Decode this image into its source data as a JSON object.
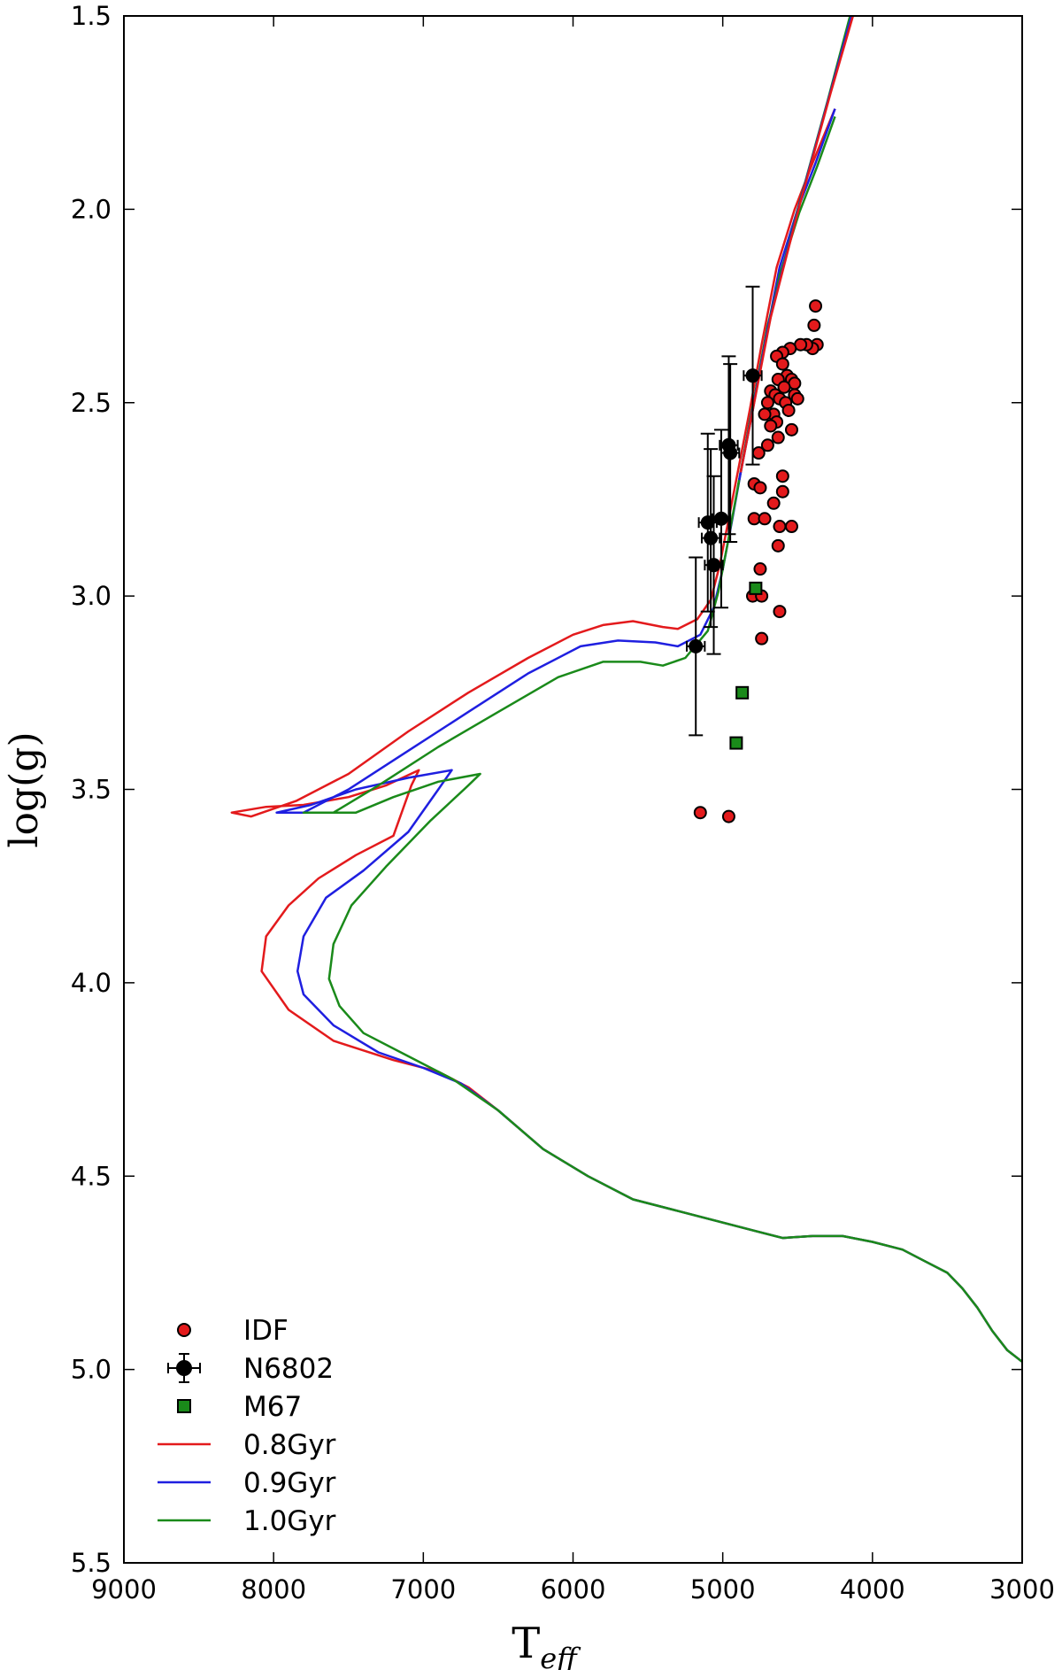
{
  "chart_data": {
    "type": "scatter",
    "title": "",
    "xlabel": "T",
    "xlabel_sub": "eff",
    "ylabel": "log(g)",
    "xlim": [
      9000,
      3000
    ],
    "ylim": [
      1.5,
      5.5
    ],
    "x_ticks": [
      9000,
      8000,
      7000,
      6000,
      5000,
      4000,
      3000
    ],
    "x_tick_labels": [
      "9000",
      "8000",
      "7000",
      "6000",
      "5000",
      "4000",
      "3000"
    ],
    "y_ticks": [
      1.5,
      2.0,
      2.5,
      3.0,
      3.5,
      4.0,
      4.5,
      5.0,
      5.5
    ],
    "y_tick_labels": [
      "1.5",
      "2.0",
      "2.5",
      "3.0",
      "3.5",
      "4.0",
      "4.5",
      "5.0",
      "5.5"
    ],
    "grid": false,
    "legend_position": "lower-left",
    "series": [
      {
        "name": "IDF",
        "kind": "scatter",
        "marker": "circle",
        "color": "#e31a1c",
        "points": [
          [
            4380,
            2.25
          ],
          [
            4390,
            2.3
          ],
          [
            4370,
            2.35
          ],
          [
            4400,
            2.36
          ],
          [
            4440,
            2.35
          ],
          [
            4480,
            2.35
          ],
          [
            4550,
            2.36
          ],
          [
            4600,
            2.37
          ],
          [
            4640,
            2.38
          ],
          [
            4600,
            2.4
          ],
          [
            4570,
            2.43
          ],
          [
            4540,
            2.44
          ],
          [
            4520,
            2.45
          ],
          [
            4630,
            2.44
          ],
          [
            4590,
            2.46
          ],
          [
            4680,
            2.47
          ],
          [
            4650,
            2.48
          ],
          [
            4520,
            2.48
          ],
          [
            4500,
            2.49
          ],
          [
            4620,
            2.49
          ],
          [
            4700,
            2.5
          ],
          [
            4580,
            2.5
          ],
          [
            4560,
            2.52
          ],
          [
            4660,
            2.53
          ],
          [
            4720,
            2.53
          ],
          [
            4640,
            2.55
          ],
          [
            4680,
            2.56
          ],
          [
            4540,
            2.57
          ],
          [
            4630,
            2.59
          ],
          [
            4700,
            2.61
          ],
          [
            4760,
            2.63
          ],
          [
            4600,
            2.69
          ],
          [
            4790,
            2.71
          ],
          [
            4750,
            2.72
          ],
          [
            4600,
            2.73
          ],
          [
            4660,
            2.76
          ],
          [
            4790,
            2.8
          ],
          [
            4720,
            2.8
          ],
          [
            4620,
            2.82
          ],
          [
            4540,
            2.82
          ],
          [
            4630,
            2.87
          ],
          [
            4750,
            2.93
          ],
          [
            4800,
            3.0
          ],
          [
            4740,
            3.0
          ],
          [
            4620,
            3.04
          ],
          [
            4740,
            3.11
          ],
          [
            5150,
            3.56
          ],
          [
            4960,
            3.57
          ]
        ]
      },
      {
        "name": "N6802",
        "kind": "errorbar",
        "marker": "circle",
        "color": "#000000",
        "points": [
          {
            "x": 4800,
            "y": 2.43,
            "xerr": 60,
            "yerr": 0.23
          },
          {
            "x": 4960,
            "y": 2.61,
            "xerr": 60,
            "yerr": 0.23
          },
          {
            "x": 4950,
            "y": 2.63,
            "xerr": 60,
            "yerr": 0.23
          },
          {
            "x": 5010,
            "y": 2.8,
            "xerr": 60,
            "yerr": 0.23
          },
          {
            "x": 5100,
            "y": 2.81,
            "xerr": 60,
            "yerr": 0.23
          },
          {
            "x": 5080,
            "y": 2.85,
            "xerr": 60,
            "yerr": 0.23
          },
          {
            "x": 5060,
            "y": 2.92,
            "xerr": 60,
            "yerr": 0.23
          },
          {
            "x": 5180,
            "y": 3.13,
            "xerr": 60,
            "yerr": 0.23
          }
        ]
      },
      {
        "name": "M67",
        "kind": "scatter",
        "marker": "square",
        "color": "#1a8a1a",
        "points": [
          [
            4780,
            2.98
          ],
          [
            4870,
            3.25
          ],
          [
            4910,
            3.38
          ]
        ]
      },
      {
        "name": "0.8Gyr",
        "kind": "line",
        "color": "#e31a1c",
        "points": [
          [
            3000,
            4.98
          ],
          [
            3100,
            4.95
          ],
          [
            3200,
            4.9
          ],
          [
            3300,
            4.84
          ],
          [
            3400,
            4.79
          ],
          [
            3500,
            4.75
          ],
          [
            3650,
            4.72
          ],
          [
            3800,
            4.69
          ],
          [
            4000,
            4.67
          ],
          [
            4200,
            4.655
          ],
          [
            4400,
            4.655
          ],
          [
            4600,
            4.66
          ],
          [
            4800,
            4.64
          ],
          [
            5000,
            4.62
          ],
          [
            5300,
            4.59
          ],
          [
            5600,
            4.56
          ],
          [
            5900,
            4.5
          ],
          [
            6200,
            4.43
          ],
          [
            6500,
            4.33
          ],
          [
            6700,
            4.27
          ],
          [
            6900,
            4.23
          ],
          [
            7200,
            4.2
          ],
          [
            7600,
            4.15
          ],
          [
            7900,
            4.07
          ],
          [
            8080,
            3.97
          ],
          [
            8050,
            3.88
          ],
          [
            7900,
            3.8
          ],
          [
            7700,
            3.73
          ],
          [
            7450,
            3.67
          ],
          [
            7200,
            3.62
          ],
          [
            7080,
            3.49
          ],
          [
            7030,
            3.45
          ],
          [
            7250,
            3.49
          ],
          [
            7500,
            3.52
          ],
          [
            7800,
            3.54
          ],
          [
            8050,
            3.545
          ],
          [
            8280,
            3.56
          ],
          [
            8150,
            3.57
          ],
          [
            7850,
            3.53
          ],
          [
            7500,
            3.46
          ],
          [
            7100,
            3.35
          ],
          [
            6700,
            3.25
          ],
          [
            6300,
            3.16
          ],
          [
            6000,
            3.1
          ],
          [
            5800,
            3.075
          ],
          [
            5600,
            3.065
          ],
          [
            5400,
            3.08
          ],
          [
            5300,
            3.085
          ],
          [
            5170,
            3.06
          ],
          [
            5080,
            3.01
          ],
          [
            5020,
            2.92
          ],
          [
            4960,
            2.8
          ],
          [
            4900,
            2.68
          ],
          [
            4820,
            2.52
          ],
          [
            4740,
            2.35
          ],
          [
            4640,
            2.15
          ],
          [
            4520,
            2.0
          ],
          [
            4400,
            1.88
          ],
          [
            4250,
            1.74
          ]
        ]
      },
      {
        "name": "0.9Gyr",
        "kind": "line",
        "color": "#1f1fe0",
        "points": [
          [
            3000,
            4.98
          ],
          [
            3100,
            4.95
          ],
          [
            3200,
            4.9
          ],
          [
            3300,
            4.84
          ],
          [
            3400,
            4.79
          ],
          [
            3500,
            4.75
          ],
          [
            3650,
            4.72
          ],
          [
            3800,
            4.69
          ],
          [
            4000,
            4.67
          ],
          [
            4200,
            4.655
          ],
          [
            4400,
            4.655
          ],
          [
            4600,
            4.66
          ],
          [
            4800,
            4.64
          ],
          [
            5000,
            4.62
          ],
          [
            5300,
            4.59
          ],
          [
            5600,
            4.56
          ],
          [
            5900,
            4.5
          ],
          [
            6200,
            4.43
          ],
          [
            6500,
            4.33
          ],
          [
            6750,
            4.26
          ],
          [
            7000,
            4.22
          ],
          [
            7300,
            4.18
          ],
          [
            7600,
            4.11
          ],
          [
            7800,
            4.03
          ],
          [
            7840,
            3.97
          ],
          [
            7800,
            3.88
          ],
          [
            7650,
            3.78
          ],
          [
            7400,
            3.71
          ],
          [
            7100,
            3.61
          ],
          [
            6900,
            3.5
          ],
          [
            6810,
            3.45
          ],
          [
            7100,
            3.47
          ],
          [
            7450,
            3.5
          ],
          [
            7750,
            3.54
          ],
          [
            7980,
            3.56
          ],
          [
            7800,
            3.56
          ],
          [
            7500,
            3.5
          ],
          [
            7100,
            3.4
          ],
          [
            6700,
            3.3
          ],
          [
            6300,
            3.2
          ],
          [
            5950,
            3.13
          ],
          [
            5700,
            3.115
          ],
          [
            5450,
            3.12
          ],
          [
            5300,
            3.13
          ],
          [
            5150,
            3.1
          ],
          [
            5060,
            3.03
          ],
          [
            5000,
            2.93
          ],
          [
            4940,
            2.81
          ],
          [
            4880,
            2.68
          ],
          [
            4800,
            2.52
          ],
          [
            4720,
            2.35
          ],
          [
            4620,
            2.15
          ],
          [
            4500,
            2.0
          ],
          [
            4380,
            1.88
          ],
          [
            4250,
            1.74
          ]
        ]
      },
      {
        "name": "1.0Gyr",
        "kind": "line",
        "color": "#1a8a1a",
        "points": [
          [
            3000,
            4.98
          ],
          [
            3100,
            4.95
          ],
          [
            3200,
            4.9
          ],
          [
            3300,
            4.84
          ],
          [
            3400,
            4.79
          ],
          [
            3500,
            4.75
          ],
          [
            3650,
            4.72
          ],
          [
            3800,
            4.69
          ],
          [
            4000,
            4.67
          ],
          [
            4200,
            4.655
          ],
          [
            4400,
            4.655
          ],
          [
            4600,
            4.66
          ],
          [
            4800,
            4.64
          ],
          [
            5000,
            4.62
          ],
          [
            5300,
            4.59
          ],
          [
            5600,
            4.56
          ],
          [
            5900,
            4.5
          ],
          [
            6200,
            4.43
          ],
          [
            6500,
            4.33
          ],
          [
            6800,
            4.25
          ],
          [
            7100,
            4.19
          ],
          [
            7400,
            4.13
          ],
          [
            7560,
            4.06
          ],
          [
            7630,
            3.99
          ],
          [
            7600,
            3.9
          ],
          [
            7480,
            3.8
          ],
          [
            7250,
            3.7
          ],
          [
            6950,
            3.58
          ],
          [
            6700,
            3.49
          ],
          [
            6620,
            3.46
          ],
          [
            6900,
            3.48
          ],
          [
            7200,
            3.52
          ],
          [
            7450,
            3.56
          ],
          [
            7800,
            3.56
          ],
          [
            7600,
            3.56
          ],
          [
            7300,
            3.49
          ],
          [
            6900,
            3.39
          ],
          [
            6500,
            3.3
          ],
          [
            6100,
            3.21
          ],
          [
            5800,
            3.17
          ],
          [
            5550,
            3.17
          ],
          [
            5400,
            3.18
          ],
          [
            5250,
            3.16
          ],
          [
            5100,
            3.09
          ],
          [
            5030,
            2.99
          ],
          [
            4970,
            2.87
          ],
          [
            4900,
            2.72
          ],
          [
            4820,
            2.55
          ],
          [
            4730,
            2.37
          ],
          [
            4620,
            2.17
          ],
          [
            4490,
            2.01
          ],
          [
            4370,
            1.89
          ],
          [
            4250,
            1.76
          ]
        ]
      },
      {
        "name": "",
        "kind": "line",
        "color": "#1a8a1a",
        "legend": false,
        "points": [
          [
            4900,
            2.72
          ],
          [
            4700,
            2.3
          ],
          [
            4500,
            2.0
          ],
          [
            4300,
            1.72
          ],
          [
            4150,
            1.5
          ]
        ]
      },
      {
        "name": "",
        "kind": "line",
        "color": "#1f1fe0",
        "legend": false,
        "points": [
          [
            4890,
            2.7
          ],
          [
            4690,
            2.29
          ],
          [
            4490,
            1.99
          ],
          [
            4290,
            1.71
          ],
          [
            4140,
            1.5
          ]
        ]
      },
      {
        "name": "",
        "kind": "line",
        "color": "#e31a1c",
        "legend": false,
        "points": [
          [
            4880,
            2.68
          ],
          [
            4680,
            2.28
          ],
          [
            4480,
            1.98
          ],
          [
            4280,
            1.7
          ],
          [
            4130,
            1.5
          ]
        ]
      }
    ]
  }
}
